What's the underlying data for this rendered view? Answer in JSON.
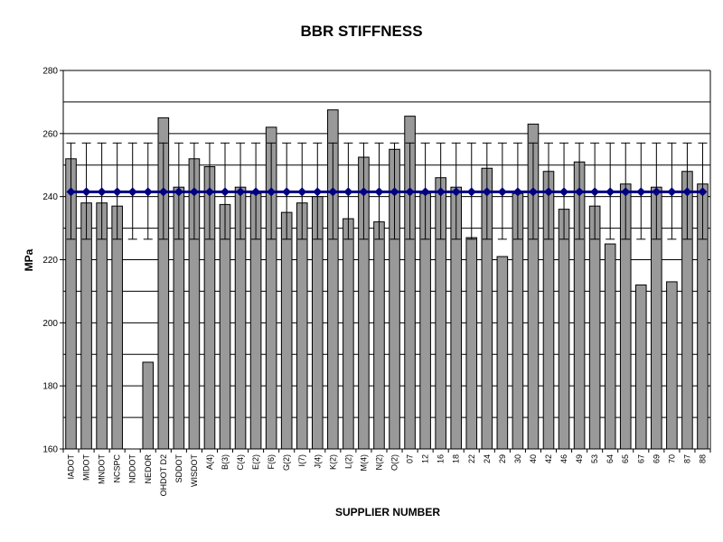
{
  "chart_data": {
    "type": "bar",
    "title": "BBR STIFFNESS",
    "xlabel": "SUPPLIER NUMBER",
    "ylabel": "MPa",
    "ylim": [
      160,
      280
    ],
    "yticks": [
      160,
      180,
      200,
      220,
      240,
      260,
      280
    ],
    "gridlines": [
      160,
      170,
      180,
      190,
      200,
      210,
      220,
      230,
      240,
      250,
      260,
      270,
      280
    ],
    "grid": true,
    "legend": "none",
    "categories": [
      "IADOT",
      "MIDOT",
      "MNDOT",
      "NCSPC",
      "NDDOT",
      "NEDOR",
      "OHDOT D2",
      "SDDOT",
      "WISDOT",
      "A(4)",
      "B(3)",
      "C(4)",
      "E(2)",
      "F(6)",
      "G(2)",
      "I(7)",
      "J(4)",
      "K(2)",
      "L(2)",
      "M(4)",
      "N(2)",
      "O(2)",
      "07",
      "12",
      "16",
      "18",
      "22",
      "24",
      "29",
      "30",
      "40",
      "42",
      "46",
      "49",
      "53",
      "64",
      "65",
      "67",
      "69",
      "70",
      "87",
      "88"
    ],
    "series": [
      {
        "type": "bar",
        "color": "#999999",
        "values": [
          252,
          238,
          238,
          237,
          null,
          187.5,
          265,
          243,
          252,
          249.5,
          237.5,
          243,
          241,
          262,
          235,
          238,
          240,
          267.5,
          233,
          252.5,
          232,
          255,
          265.5,
          241,
          246,
          243,
          227,
          249,
          221,
          241,
          263,
          248,
          236,
          251,
          237,
          225,
          244,
          212,
          243,
          213,
          248,
          244
        ]
      },
      {
        "type": "line",
        "color": "#000080",
        "marker": "diamond",
        "value": 241.5,
        "error_low": 226.5,
        "error_high": 257
      }
    ]
  }
}
